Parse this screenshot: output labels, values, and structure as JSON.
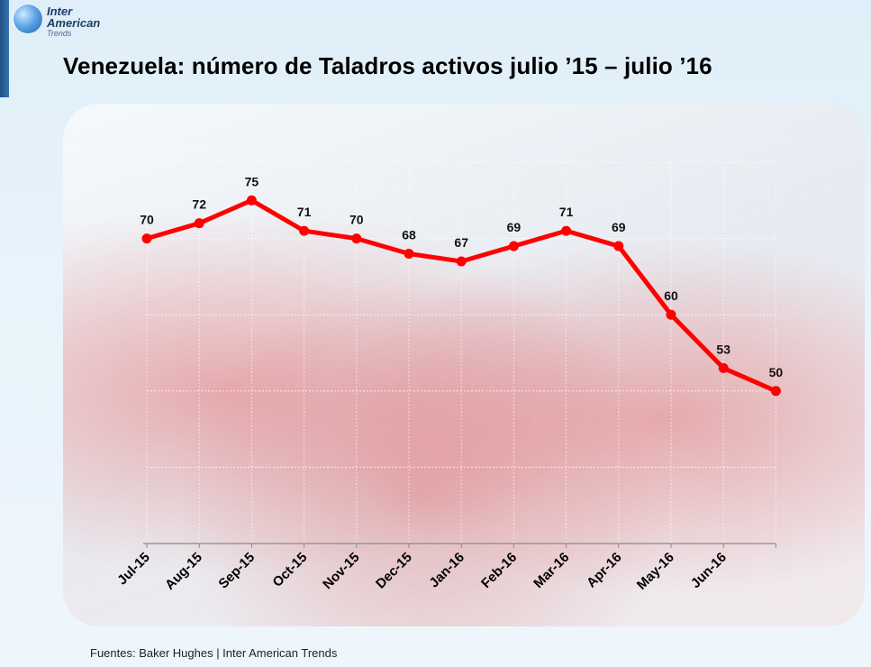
{
  "logo": {
    "line1": "Inter",
    "line2": "American",
    "line3": "Trends"
  },
  "title": "Venezuela: número de Taladros activos julio ’15 – julio ’16",
  "source": "Fuentes: Baker Hughes | Inter American Trends",
  "chart_data": {
    "type": "line",
    "title": "Venezuela: número de Taladros activos julio ’15 – julio ’16",
    "xlabel": "",
    "ylabel": "",
    "categories": [
      "Jul-15",
      "Aug-15",
      "Sep-15",
      "Oct-15",
      "Nov-15",
      "Dec-15",
      "Jan-16",
      "Feb-16",
      "Mar-16",
      "Apr-16",
      "May-16",
      "Jun-16",
      ""
    ],
    "series": [
      {
        "values": [
          70,
          72,
          75,
          71,
          70,
          68,
          67,
          69,
          71,
          69,
          60,
          53,
          50
        ],
        "color": "#ff0000"
      }
    ],
    "ylim": [
      30,
      80
    ],
    "grid": true,
    "data_labels": true,
    "legend": "none"
  }
}
